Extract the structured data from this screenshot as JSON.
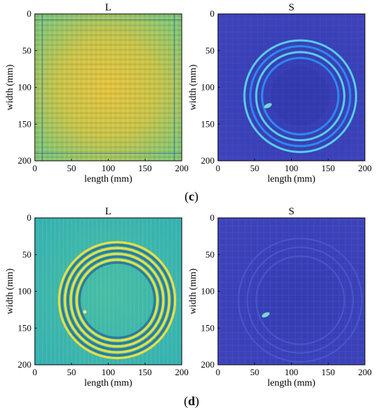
{
  "panels": {
    "c": "(c)",
    "d": "(d)"
  },
  "colors": {
    "L_c_base": "#8ec86a",
    "L_c_hot": "#e8c238",
    "L_d_base": "#3fb8a6",
    "ring_bright": "#f4e03a",
    "ring_dark": "#2a6e9a",
    "S_bg": "#3a3fb6",
    "S_ring": "#2c8ef0",
    "S_ring_bright": "#58d6f2"
  },
  "chart_data": [
    {
      "type": "heatmap",
      "title": "L",
      "xlabel": "length (mm)",
      "ylabel": "width (mm)",
      "xlim": [
        0,
        200
      ],
      "ylim": [
        0,
        200
      ],
      "xticks": [
        "0",
        "50",
        "100",
        "150",
        "200"
      ],
      "yticks": [
        "0",
        "50",
        "100",
        "150",
        "200"
      ],
      "pattern": "grid stripes, brightest band at x 50–150, y 50–150",
      "panel": "c"
    },
    {
      "type": "heatmap",
      "title": "S",
      "xlabel": "length (mm)",
      "ylabel": "width (mm)",
      "xlim": [
        0,
        200
      ],
      "ylim": [
        0,
        200
      ],
      "xticks": [
        "0",
        "50",
        "100",
        "150",
        "200"
      ],
      "yticks": [
        "0",
        "50",
        "100",
        "150",
        "200"
      ],
      "ring_center": [
        112,
        112
      ],
      "ring_radii": [
        52,
        60,
        68,
        76
      ],
      "defect_location": [
        68,
        125
      ],
      "panel": "c"
    },
    {
      "type": "heatmap",
      "title": "L",
      "xlabel": "length (mm)",
      "ylabel": "width (mm)",
      "xlim": [
        0,
        200
      ],
      "ylim": [
        0,
        200
      ],
      "xticks": [
        "0",
        "50",
        "100",
        "150",
        "200"
      ],
      "yticks": [
        "0",
        "50",
        "100",
        "150",
        "200"
      ],
      "ring_center": [
        112,
        112
      ],
      "ring_radii": [
        55,
        63,
        71,
        79
      ],
      "defect_location": [
        68,
        128
      ],
      "panel": "d"
    },
    {
      "type": "heatmap",
      "title": "S",
      "xlabel": "length (mm)",
      "ylabel": "width (mm)",
      "xlim": [
        0,
        200
      ],
      "ylim": [
        0,
        200
      ],
      "xticks": [
        "0",
        "50",
        "100",
        "150",
        "200"
      ],
      "yticks": [
        "0",
        "50",
        "100",
        "150",
        "200"
      ],
      "ring_center": [
        112,
        112
      ],
      "ring_radii": [
        60,
        72,
        84
      ],
      "defect_location": [
        65,
        132
      ],
      "panel": "d"
    }
  ]
}
